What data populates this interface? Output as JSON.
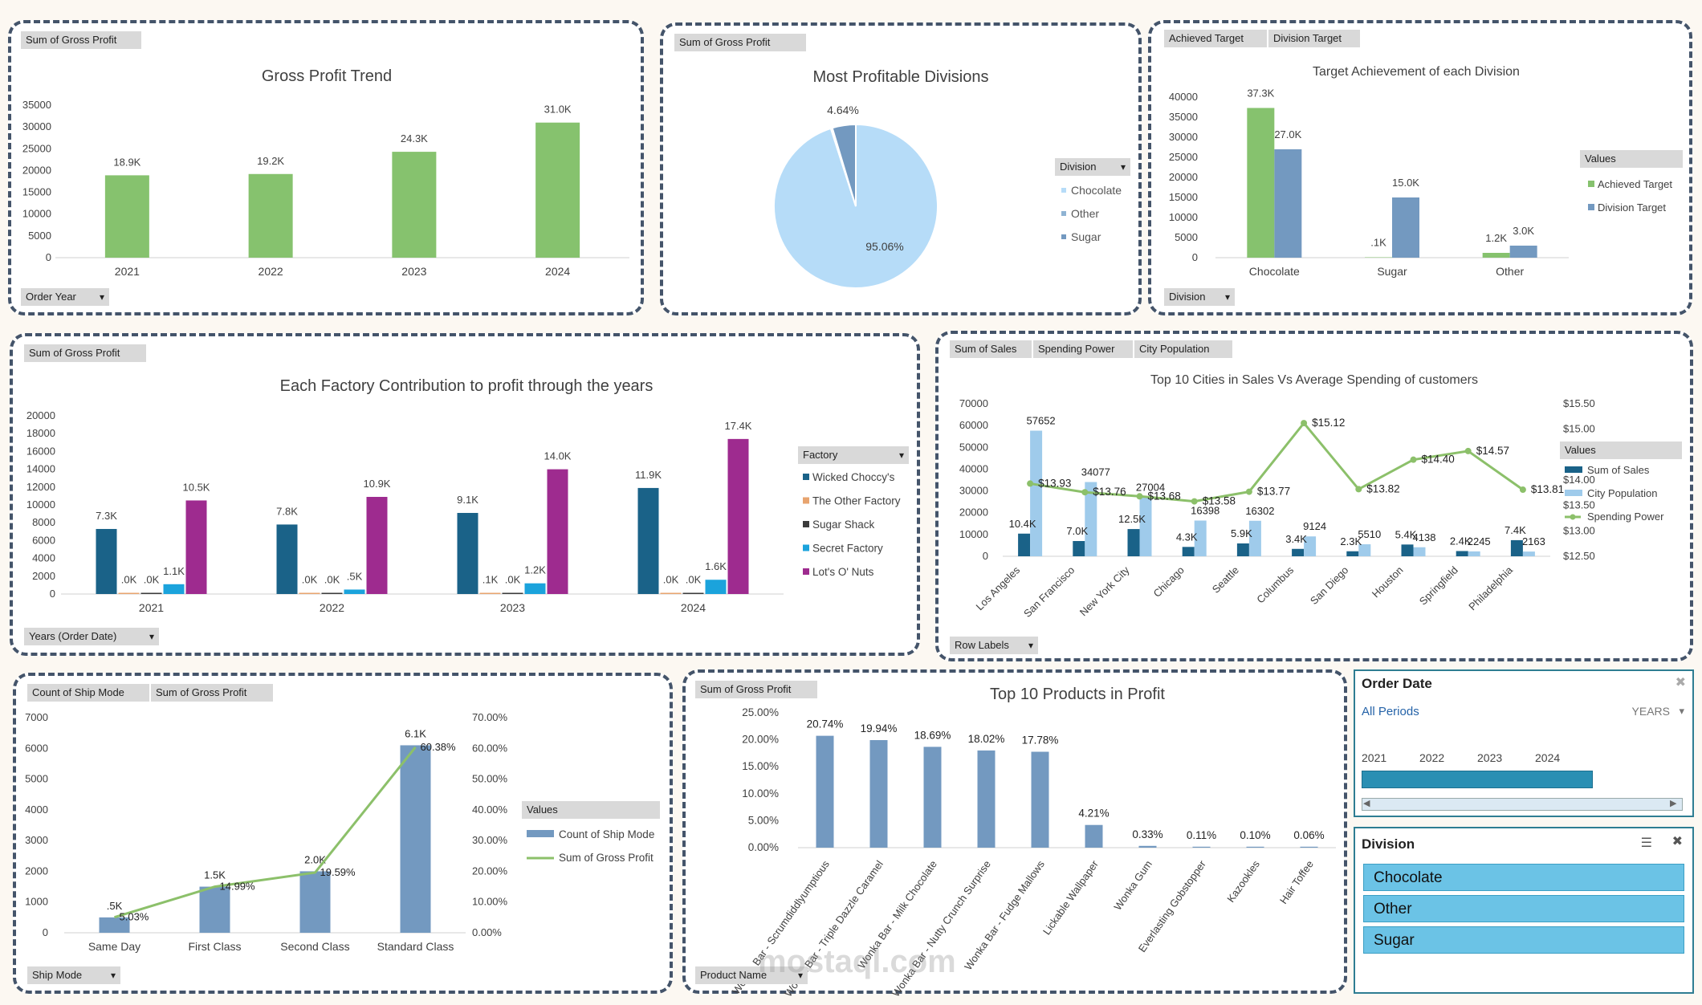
{
  "panels": {
    "gross_profit_trend": {
      "field_buttons": [
        "Sum of Gross Profit"
      ],
      "axis_button": "Order Year"
    },
    "profitable_divisions": {
      "field_buttons": [
        "Sum of Gross Profit"
      ],
      "legend_title": "Division"
    },
    "target_achievement": {
      "field_buttons": [
        "Achieved Target",
        "Division Target"
      ],
      "axis_button": "Division",
      "legend_title": "Values"
    },
    "factory_contribution": {
      "field_buttons": [
        "Sum of Gross Profit"
      ],
      "axis_button": "Years (Order Date)",
      "legend_title": "Factory"
    },
    "top_cities": {
      "field_buttons": [
        "Sum of Sales",
        "Spending Power",
        "City Population"
      ],
      "axis_button": "Row Labels",
      "legend_title": "Values"
    },
    "ship_mode": {
      "field_buttons": [
        "Count of Ship Mode",
        "Sum of Gross Profit"
      ],
      "axis_button": "Ship Mode",
      "legend_title": "Values"
    },
    "top_products": {
      "field_buttons": [
        "Sum of Gross Profit"
      ],
      "axis_button": "Product Name"
    }
  },
  "slicers": {
    "order_date": {
      "title": "Order Date",
      "selection": "All Periods",
      "level": "YEARS",
      "years": [
        "2021",
        "2022",
        "2023",
        "2024"
      ]
    },
    "division": {
      "title": "Division",
      "items": [
        "Chocolate",
        "Other",
        "Sugar"
      ]
    }
  },
  "watermark": "mostaql.com",
  "colors": {
    "green": "#86c26e",
    "steel": "#7399c0",
    "light_blue": "#b6dcf8",
    "navy": "#1a6288",
    "orange": "#e8a46f",
    "dark": "#3b3b3b",
    "cyan": "#1ba3dc",
    "magenta": "#9e2b8f",
    "pale_blue": "#9fcbeb",
    "line_green": "#8cc06a"
  },
  "chart_data": [
    {
      "id": "gross_profit_trend",
      "type": "bar",
      "title": "Gross Profit Trend",
      "categories": [
        "2021",
        "2022",
        "2023",
        "2024"
      ],
      "values": [
        18900,
        19200,
        24300,
        31000
      ],
      "labels": [
        "18.9K",
        "19.2K",
        "24.3K",
        "31.0K"
      ],
      "ylim": [
        0,
        35000
      ],
      "yticks": [
        0,
        5000,
        10000,
        15000,
        20000,
        25000,
        30000,
        35000
      ],
      "color": "#86c26e"
    },
    {
      "id": "profitable_divisions",
      "type": "pie",
      "title": "Most Profitable Divisions",
      "slices": [
        {
          "name": "Chocolate",
          "value": 95.06,
          "label": "95.06%",
          "color": "#b6dcf8"
        },
        {
          "name": "Other",
          "value": 0.3,
          "label": "",
          "color": "#8fb3d3"
        },
        {
          "name": "Sugar",
          "value": 4.64,
          "label": "4.64%",
          "color": "#7399c0"
        }
      ],
      "legend": [
        "Chocolate",
        "Other",
        "Sugar"
      ]
    },
    {
      "id": "target_achievement",
      "type": "bar",
      "title": "Target Achievement of each Division",
      "categories": [
        "Chocolate",
        "Sugar",
        "Other"
      ],
      "series": [
        {
          "name": "Achieved Target",
          "values": [
            37300,
            100,
            1200
          ],
          "labels": [
            "37.3K",
            ".1K",
            "1.2K"
          ],
          "color": "#86c26e"
        },
        {
          "name": "Division Target",
          "values": [
            27000,
            15000,
            3000
          ],
          "labels": [
            "27.0K",
            "15.0K",
            "3.0K"
          ],
          "color": "#7399c0"
        }
      ],
      "ylim": [
        0,
        40000
      ],
      "yticks": [
        0,
        5000,
        10000,
        15000,
        20000,
        25000,
        30000,
        35000,
        40000
      ]
    },
    {
      "id": "factory_contribution",
      "type": "bar",
      "title": "Each Factory Contribution to profit through the years",
      "categories": [
        "2021",
        "2022",
        "2023",
        "2024"
      ],
      "series": [
        {
          "name": "Wicked Choccy's",
          "values": [
            7300,
            7800,
            9100,
            11900
          ],
          "labels": [
            "7.3K",
            "7.8K",
            "9.1K",
            "11.9K"
          ],
          "color": "#1a6288"
        },
        {
          "name": "The Other Factory",
          "values": [
            20,
            20,
            100,
            20
          ],
          "labels": [
            ".0K",
            ".0K",
            ".1K",
            ".0K"
          ],
          "color": "#e8a46f"
        },
        {
          "name": "Sugar Shack",
          "values": [
            20,
            20,
            20,
            20
          ],
          "labels": [
            ".0K",
            ".0K",
            ".0K",
            ".0K"
          ],
          "color": "#3b3b3b"
        },
        {
          "name": "Secret Factory",
          "values": [
            1100,
            500,
            1200,
            1600
          ],
          "labels": [
            "1.1K",
            ".5K",
            "1.2K",
            "1.6K"
          ],
          "color": "#1ba3dc"
        },
        {
          "name": "Lot's O' Nuts",
          "values": [
            10500,
            10900,
            14000,
            17400
          ],
          "labels": [
            "10.5K",
            "10.9K",
            "14.0K",
            "17.4K"
          ],
          "color": "#9e2b8f"
        }
      ],
      "ylim": [
        0,
        20000
      ],
      "yticks": [
        0,
        2000,
        4000,
        6000,
        8000,
        10000,
        12000,
        14000,
        16000,
        18000,
        20000
      ]
    },
    {
      "id": "top_cities",
      "type": "bar",
      "title": "Top 10 Cities in Sales Vs Average Spending of customers",
      "categories": [
        "Los Angeles",
        "San Francisco",
        "New York City",
        "Chicago",
        "Seattle",
        "Columbus",
        "San Diego",
        "Houston",
        "Springfield",
        "Philadelphia"
      ],
      "series": [
        {
          "name": "Sum of Sales",
          "axis": "left",
          "values": [
            10400,
            7000,
            12500,
            4300,
            5900,
            3400,
            2300,
            5400,
            2400,
            7400
          ],
          "labels": [
            "10.4K",
            "7.0K",
            "12.5K",
            "4.3K",
            "5.9K",
            "3.4K",
            "2.3K",
            "5.4K",
            "2.4K",
            "7.4K"
          ],
          "color": "#1a6288"
        },
        {
          "name": "City Population",
          "axis": "left",
          "values": [
            57652,
            34077,
            27004,
            16398,
            16302,
            9124,
            5510,
            4138,
            2245,
            2163
          ],
          "labels": [
            "57652",
            "34077",
            "27004",
            "16398",
            "16302",
            "9124",
            "5510",
            "4138",
            "2245",
            "2163"
          ],
          "color": "#9fcbeb"
        },
        {
          "name": "Spending Power",
          "axis": "right",
          "type": "line",
          "values": [
            13.93,
            13.76,
            13.68,
            13.58,
            13.77,
            15.12,
            13.82,
            14.4,
            14.57,
            13.81
          ],
          "labels": [
            "$13.93",
            "$13.76",
            "$13.68",
            "$13.58",
            "$13.77",
            "$15.12",
            "$13.82",
            "$14.40",
            "$14.57",
            "$13.81"
          ],
          "color": "#8cc06a"
        }
      ],
      "ylim": [
        0,
        70000
      ],
      "yticks": [
        0,
        10000,
        20000,
        30000,
        40000,
        50000,
        60000,
        70000
      ],
      "y2lim": [
        12.5,
        15.5
      ],
      "y2ticks": [
        "$12.50",
        "$13.00",
        "$13.50",
        "$14.00",
        "$14.50",
        "$15.00",
        "$15.50"
      ]
    },
    {
      "id": "ship_mode",
      "type": "bar",
      "categories": [
        "Same Day",
        "First Class",
        "Second Class",
        "Standard Class"
      ],
      "series": [
        {
          "name": "Count of Ship Mode",
          "axis": "left",
          "values": [
            500,
            1500,
            2000,
            6100
          ],
          "labels": [
            ".5K",
            "1.5K",
            "2.0K",
            "6.1K"
          ],
          "color": "#7399c0"
        },
        {
          "name": "Sum of Gross Profit",
          "axis": "right",
          "type": "line",
          "values": [
            5.03,
            14.99,
            19.59,
            60.38
          ],
          "labels": [
            "5.03%",
            "14.99%",
            "19.59%",
            "60.38%"
          ],
          "color": "#8cc06a"
        }
      ],
      "ylim": [
        0,
        7000
      ],
      "yticks": [
        0,
        1000,
        2000,
        3000,
        4000,
        5000,
        6000,
        7000
      ],
      "y2lim": [
        0,
        70
      ],
      "y2ticks": [
        "0.00%",
        "10.00%",
        "20.00%",
        "30.00%",
        "40.00%",
        "50.00%",
        "60.00%",
        "70.00%"
      ]
    },
    {
      "id": "top_products",
      "type": "bar",
      "title": "Top 10 Products in Profit",
      "categories": [
        "Wonka Bar - Scrumdiddlyumptious",
        "Wonka Bar - Triple Dazzle Caramel",
        "Wonka Bar - Milk Chocolate",
        "Wonka Bar - Nutty Crunch Surprise",
        "Wonka Bar - Fudge Mallows",
        "Lickable Wallpaper",
        "Wonka Gum",
        "Everlasting Gobstopper",
        "Kazookles",
        "Hair Toffee"
      ],
      "values": [
        20.74,
        19.94,
        18.69,
        18.02,
        17.78,
        4.21,
        0.33,
        0.11,
        0.1,
        0.06
      ],
      "labels": [
        "20.74%",
        "19.94%",
        "18.69%",
        "18.02%",
        "17.78%",
        "4.21%",
        "0.33%",
        "0.11%",
        "0.10%",
        "0.06%"
      ],
      "ylim": [
        0,
        25
      ],
      "yticks": [
        "0.00%",
        "5.00%",
        "10.00%",
        "15.00%",
        "20.00%",
        "25.00%"
      ],
      "color": "#7399c0"
    }
  ]
}
